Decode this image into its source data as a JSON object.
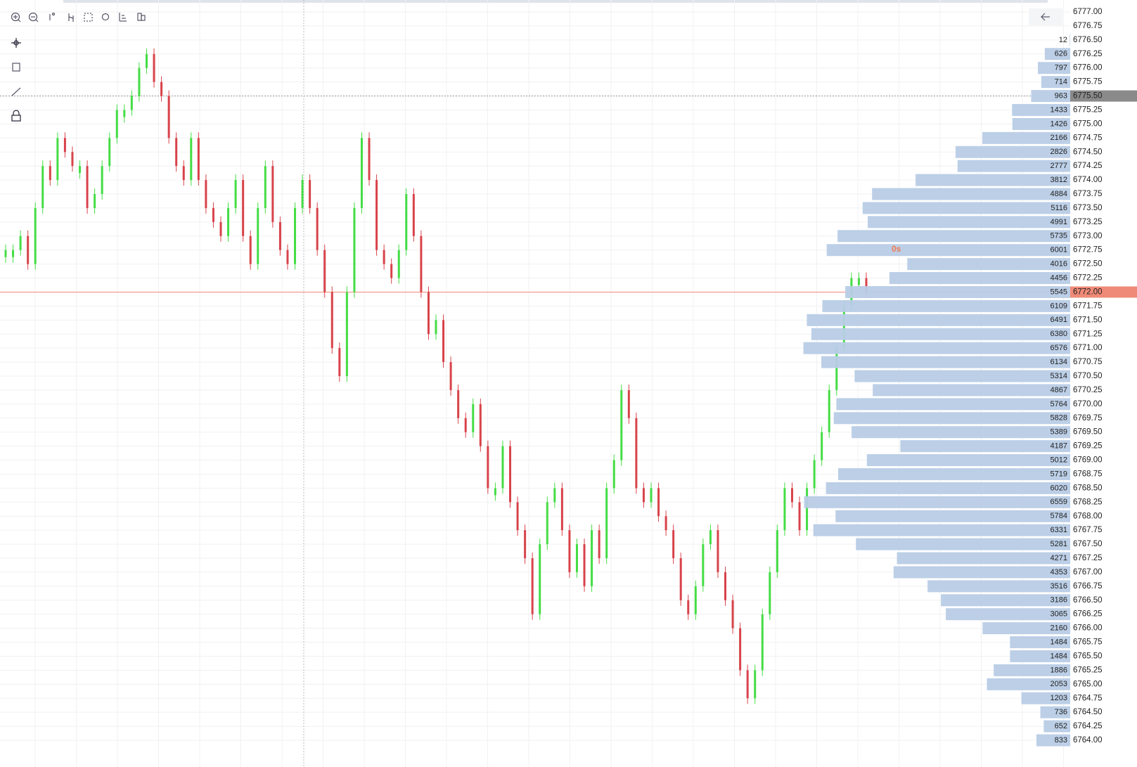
{
  "chart_data": {
    "type": "volume_profile",
    "ylim": [
      6764,
      6777
    ],
    "categories": [
      "6777.00",
      "6776.75",
      "6776.50",
      "6776.25",
      "6776.00",
      "6775.75",
      "6775.50",
      "6775.25",
      "6775.00",
      "6774.75",
      "6774.50",
      "6774.25",
      "6774.00",
      "6773.75",
      "6773.50",
      "6773.25",
      "6773.00",
      "6772.75",
      "6772.50",
      "6772.25",
      "6772.00",
      "6771.75",
      "6771.50",
      "6771.25",
      "6771.00",
      "6770.75",
      "6770.50",
      "6770.25",
      "6770.00",
      "6769.75",
      "6769.50",
      "6769.25",
      "6769.00",
      "6768.75",
      "6768.50",
      "6768.25",
      "6768.00",
      "6767.75",
      "6767.50",
      "6767.25",
      "6767.00",
      "6766.75",
      "6766.50",
      "6766.25",
      "6766.00",
      "6765.75",
      "6765.50",
      "6765.25",
      "6765.00",
      "6764.75",
      "6764.50",
      "6764.25",
      "6764.00"
    ],
    "values": [
      null,
      null,
      12,
      626,
      797,
      714,
      963,
      1433,
      1426,
      2166,
      2826,
      2777,
      3812,
      4884,
      5116,
      4991,
      5735,
      6001,
      4016,
      4456,
      5545,
      6109,
      6491,
      6380,
      6576,
      6134,
      5314,
      4867,
      5764,
      5828,
      5389,
      4187,
      5012,
      5719,
      6020,
      6559,
      5784,
      6331,
      5281,
      4271,
      4353,
      3516,
      3186,
      3065,
      2160,
      1484,
      1484,
      1886,
      2053,
      1203,
      736,
      652,
      833
    ],
    "profile_color": "#b8cce6",
    "last_price": 6772,
    "crosshair_price": 6775.5,
    "countdown": "0s",
    "up_color": "#44dd44",
    "down_color": "#d8434b",
    "price": {
      "values": [
        6772.75,
        6772.75,
        6773,
        6772.5,
        6773.5,
        6774.25,
        6774,
        6774.75,
        6774.5,
        6774.25,
        6774.25,
        6773.5,
        6773.75,
        6774.25,
        6774.75,
        6775.25,
        6775.25,
        6775.5,
        6776,
        6776.25,
        6775.75,
        6775.5,
        6774.75,
        6774.25,
        6774,
        6774.75,
        6774,
        6773.5,
        6773.25,
        6773,
        6773.5,
        6774,
        6773,
        6772.5,
        6773.5,
        6774.25,
        6773.25,
        6772.75,
        6772.5,
        6773.5,
        6774,
        6773.5,
        6772.75,
        6772,
        6771,
        6770.5,
        6772,
        6773.5,
        6774.75,
        6774,
        6772.75,
        6772.5,
        6772.25,
        6772.75,
        6773.75,
        6773,
        6772,
        6771.25,
        6771.5,
        6770.75,
        6770.25,
        6769.75,
        6769.5,
        6770,
        6769.25,
        6768.5,
        6768.5,
        6769.25,
        6768.25,
        6767.75,
        6767.25,
        6766.25,
        6767.5,
        6768.25,
        6768.5,
        6767.75,
        6767,
        6767.5,
        6766.75,
        6767.75,
        6767.25,
        6768.5,
        6769,
        6770.25,
        6769.75,
        6768.5,
        6768.25,
        6768.5,
        6768,
        6767.75,
        6767.25,
        6766.5,
        6766.25,
        6766.75,
        6767.5,
        6767.75,
        6767,
        6766.5,
        6766,
        6765.25,
        6764.75,
        6765.25,
        6766.25,
        6767,
        6767.75,
        6768.5,
        6768.25,
        6767.75,
        6768.5,
        6769,
        6769.5,
        6770.25,
        6771,
        6771.75,
        6772.25,
        6772.25,
        6772
      ]
    }
  }
}
